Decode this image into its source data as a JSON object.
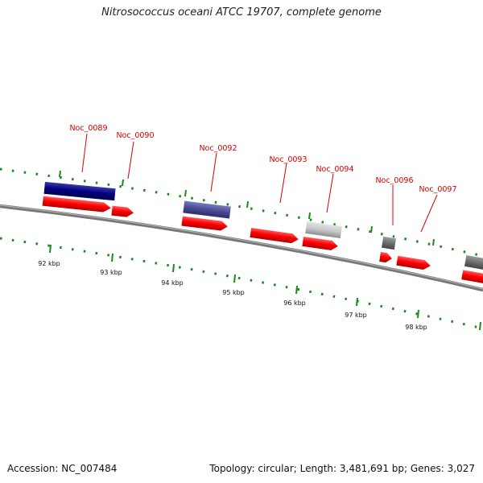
{
  "title": "Nitrosococcus oceani ATCC 19707, complete genome",
  "footer": {
    "accession": "Accession: NC_007484",
    "topology": "Topology: circular; Length: 3,481,691 bp; Genes: 3,027"
  },
  "colors": {
    "forward_cds": "#ff0000",
    "navy_feature": "#000080",
    "slate_feature": "#4b4b96",
    "light_gray_feature": "#c8c8c8",
    "dark_gray_feature": "#6e6e6e",
    "label_red": "#d40000",
    "tick_green": "#1a8a1a",
    "backbone": "#777777"
  },
  "scale": {
    "kbp_labels": [
      "92 kbp",
      "93 kbp",
      "94 kbp",
      "95 kbp",
      "96 kbp",
      "97 kbp",
      "98 kbp"
    ]
  },
  "genes": [
    {
      "label": "Noc_0089"
    },
    {
      "label": "Noc_0090"
    },
    {
      "label": "Noc_0092"
    },
    {
      "label": "Noc_0093"
    },
    {
      "label": "Noc_0094"
    },
    {
      "label": "Noc_0096"
    },
    {
      "label": "Noc_0097"
    }
  ]
}
